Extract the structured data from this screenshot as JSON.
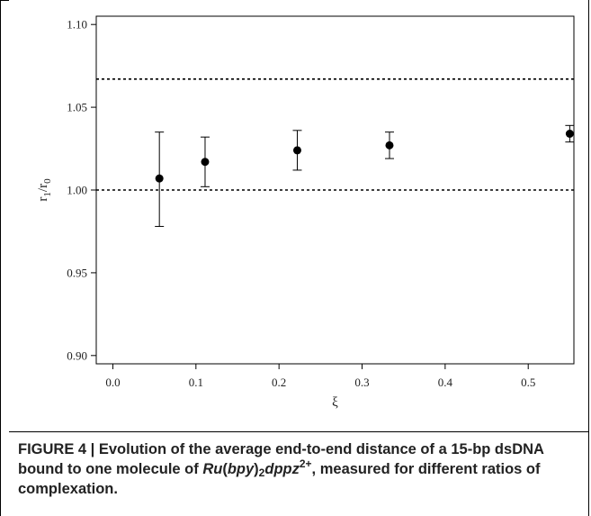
{
  "chart_data": {
    "type": "scatter",
    "xlabel": "ξ",
    "ylabel_main": "r",
    "ylabel_sub1": "1",
    "ylabel_slash": "/r",
    "ylabel_sub0": "0",
    "xlim": [
      -0.02,
      0.555
    ],
    "ylim": [
      0.895,
      1.105
    ],
    "x_ticks": [
      0.0,
      0.1,
      0.2,
      0.3,
      0.4,
      0.5
    ],
    "x_tick_labels": [
      "0.0",
      "0.1",
      "0.2",
      "0.3",
      "0.4",
      "0.5"
    ],
    "y_ticks": [
      0.9,
      0.95,
      1.0,
      1.05,
      1.1
    ],
    "y_tick_labels": [
      "0.90",
      "0.95",
      "1.00",
      "1.05",
      "1.10"
    ],
    "grid": false,
    "points": [
      {
        "x": 0.056,
        "y": 1.007,
        "err_low": 0.978,
        "err_high": 1.035
      },
      {
        "x": 0.111,
        "y": 1.017,
        "err_low": 1.002,
        "err_high": 1.032
      },
      {
        "x": 0.222,
        "y": 1.024,
        "err_low": 1.012,
        "err_high": 1.036
      },
      {
        "x": 0.333,
        "y": 1.027,
        "err_low": 1.019,
        "err_high": 1.035
      },
      {
        "x": 0.55,
        "y": 1.034,
        "err_low": 1.029,
        "err_high": 1.039
      }
    ],
    "reference_lines": [
      1.0,
      1.067
    ]
  },
  "caption": {
    "prefix": "FIGURE 4 | Evolution of the average end-to-end distance of a 15-bp dsDNA bound to one molecule of ",
    "formula_ru": "Ru",
    "formula_open": "(",
    "formula_bpy": "bpy",
    "formula_close": ")",
    "formula_sub": "2",
    "formula_dppz": "dppz",
    "formula_sup": "2+",
    "suffix": ", measured for different ratios of complexation."
  }
}
